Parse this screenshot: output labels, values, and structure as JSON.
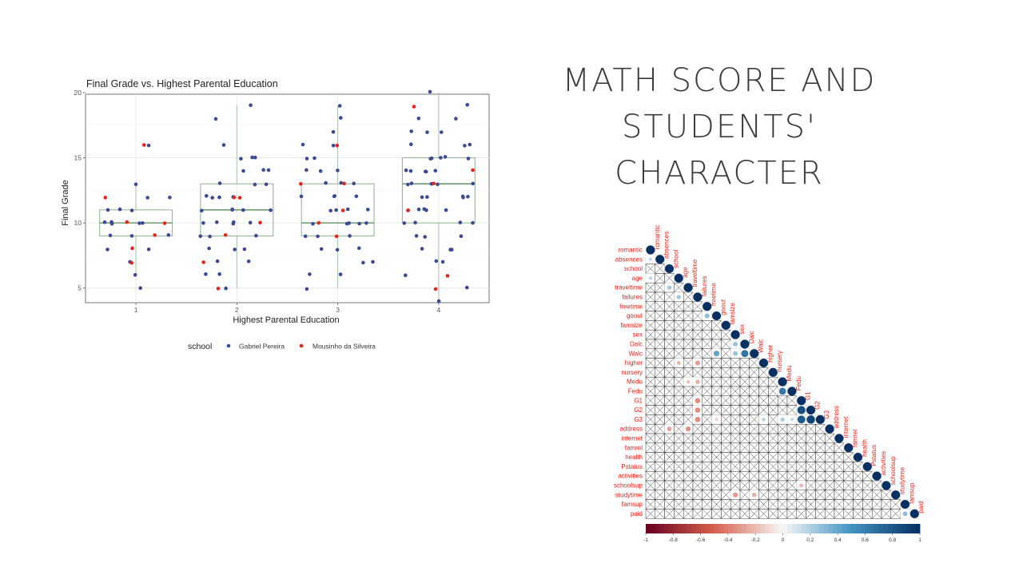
{
  "slide": {
    "title_lines": [
      "MATH SCORE AND",
      "STUDENTS'",
      "CHARACTER"
    ],
    "colors": {
      "title": "#3b3b3b"
    }
  },
  "chart_data": [
    {
      "type": "scatter",
      "subtype": "boxplot-with-jitter",
      "title": "Final Grade vs. Highest Parental Education",
      "xlabel": "Highest Parental Education",
      "ylabel": "Final Grade",
      "categories": [
        "1",
        "2",
        "3",
        "4"
      ],
      "yticks": [
        "5",
        "10",
        "15",
        "20"
      ],
      "ylim": [
        4,
        20
      ],
      "grid": true,
      "legend": {
        "title": "school",
        "position": "bottom",
        "entries": [
          {
            "label": "Gabriel Pereira",
            "color": "#3b4a94"
          },
          {
            "label": "Mousinho da Silveira",
            "color": "#e8231a"
          }
        ]
      },
      "boxes": [
        {
          "category": "1",
          "q1": 9,
          "median": 10,
          "q3": 11,
          "whisker_low": 6,
          "whisker_high": 13
        },
        {
          "category": "2",
          "q1": 9,
          "median": 11,
          "q3": 13,
          "whisker_low": 5,
          "whisker_high": 19
        },
        {
          "category": "3",
          "q1": 9,
          "median": 10,
          "q3": 13,
          "whisker_low": 5,
          "whisker_high": 19
        },
        {
          "category": "4",
          "q1": 10,
          "median": 13,
          "q3": 15,
          "whisker_low": 4,
          "whisker_high": 20
        }
      ],
      "series": [
        {
          "name": "Gabriel Pereira",
          "points": [
            [
              1,
              6
            ],
            [
              1,
              8
            ],
            [
              1,
              9
            ],
            [
              1,
              10
            ],
            [
              1,
              10
            ],
            [
              1,
              11
            ],
            [
              1,
              12
            ],
            [
              1,
              13
            ],
            [
              1,
              16
            ],
            [
              1,
              5
            ],
            [
              1,
              10
            ],
            [
              1,
              9
            ],
            [
              1,
              11
            ],
            [
              1,
              12
            ],
            [
              1,
              7
            ],
            [
              1,
              8
            ],
            [
              1,
              10
            ],
            [
              1,
              11
            ],
            [
              1,
              10
            ],
            [
              1,
              9
            ],
            [
              2,
              5
            ],
            [
              2,
              6
            ],
            [
              2,
              7
            ],
            [
              2,
              8
            ],
            [
              2,
              8
            ],
            [
              2,
              9
            ],
            [
              2,
              9
            ],
            [
              2,
              10
            ],
            [
              2,
              10
            ],
            [
              2,
              10
            ],
            [
              2,
              11
            ],
            [
              2,
              11
            ],
            [
              2,
              11
            ],
            [
              2,
              12
            ],
            [
              2,
              12
            ],
            [
              2,
              13
            ],
            [
              2,
              13
            ],
            [
              2,
              14
            ],
            [
              2,
              14
            ],
            [
              2,
              15
            ],
            [
              2,
              15
            ],
            [
              2,
              16
            ],
            [
              2,
              18
            ],
            [
              2,
              19
            ],
            [
              2,
              6
            ],
            [
              2,
              9
            ],
            [
              2,
              11
            ],
            [
              2,
              12
            ],
            [
              2,
              10
            ],
            [
              2,
              14
            ],
            [
              2,
              8
            ],
            [
              2,
              13
            ],
            [
              2,
              11
            ],
            [
              2,
              15
            ],
            [
              2,
              7
            ],
            [
              2,
              10
            ],
            [
              2,
              12
            ],
            [
              3,
              5
            ],
            [
              3,
              6
            ],
            [
              3,
              7
            ],
            [
              3,
              8
            ],
            [
              3,
              8
            ],
            [
              3,
              9
            ],
            [
              3,
              9
            ],
            [
              3,
              10
            ],
            [
              3,
              10
            ],
            [
              3,
              10
            ],
            [
              3,
              11
            ],
            [
              3,
              11
            ],
            [
              3,
              12
            ],
            [
              3,
              12
            ],
            [
              3,
              13
            ],
            [
              3,
              13
            ],
            [
              3,
              14
            ],
            [
              3,
              14
            ],
            [
              3,
              15
            ],
            [
              3,
              15
            ],
            [
              3,
              16
            ],
            [
              3,
              17
            ],
            [
              3,
              18
            ],
            [
              3,
              19
            ],
            [
              3,
              6
            ],
            [
              3,
              9
            ],
            [
              3,
              11
            ],
            [
              3,
              12
            ],
            [
              3,
              10
            ],
            [
              3,
              14
            ],
            [
              3,
              8
            ],
            [
              3,
              13
            ],
            [
              3,
              11
            ],
            [
              3,
              16
            ],
            [
              3,
              7
            ],
            [
              3,
              10
            ],
            [
              3,
              12
            ],
            [
              4,
              4
            ],
            [
              4,
              5
            ],
            [
              4,
              6
            ],
            [
              4,
              7
            ],
            [
              4,
              8
            ],
            [
              4,
              8
            ],
            [
              4,
              9
            ],
            [
              4,
              9
            ],
            [
              4,
              10
            ],
            [
              4,
              10
            ],
            [
              4,
              10
            ],
            [
              4,
              11
            ],
            [
              4,
              11
            ],
            [
              4,
              11
            ],
            [
              4,
              12
            ],
            [
              4,
              12
            ],
            [
              4,
              12
            ],
            [
              4,
              13
            ],
            [
              4,
              13
            ],
            [
              4,
              13
            ],
            [
              4,
              14
            ],
            [
              4,
              14
            ],
            [
              4,
              14
            ],
            [
              4,
              15
            ],
            [
              4,
              15
            ],
            [
              4,
              15
            ],
            [
              4,
              16
            ],
            [
              4,
              16
            ],
            [
              4,
              17
            ],
            [
              4,
              17
            ],
            [
              4,
              18
            ],
            [
              4,
              18
            ],
            [
              4,
              19
            ],
            [
              4,
              20
            ],
            [
              4,
              9
            ],
            [
              4,
              11
            ],
            [
              4,
              13
            ],
            [
              4,
              15
            ],
            [
              4,
              12
            ],
            [
              4,
              14
            ],
            [
              4,
              16
            ],
            [
              4,
              10
            ],
            [
              4,
              8
            ],
            [
              4,
              17
            ],
            [
              4,
              13
            ],
            [
              4,
              11
            ],
            [
              4,
              7
            ],
            [
              4,
              14
            ],
            [
              4,
              12
            ],
            [
              4,
              15
            ]
          ]
        },
        {
          "name": "Mousinho da Silveira",
          "points": [
            [
              1,
              16
            ],
            [
              1,
              12
            ],
            [
              1,
              10
            ],
            [
              1,
              9
            ],
            [
              1,
              8
            ],
            [
              1,
              7
            ],
            [
              1,
              10
            ],
            [
              2,
              5
            ],
            [
              2,
              7
            ],
            [
              2,
              9
            ],
            [
              2,
              10
            ],
            [
              2,
              12
            ],
            [
              2,
              12
            ],
            [
              3,
              9
            ],
            [
              3,
              10
            ],
            [
              3,
              11
            ],
            [
              3,
              13
            ],
            [
              3,
              16
            ],
            [
              3,
              13
            ],
            [
              4,
              5
            ],
            [
              4,
              6
            ],
            [
              4,
              11
            ],
            [
              4,
              13
            ],
            [
              4,
              14
            ],
            [
              4,
              19
            ]
          ]
        }
      ]
    },
    {
      "type": "heatmap",
      "subtype": "correlation-matrix-lower-triangle",
      "variables": [
        "romantic",
        "absences",
        "school",
        "age",
        "traveltime",
        "failures",
        "freetime",
        "goout",
        "famsize",
        "sex",
        "Dalc",
        "Walc",
        "higher",
        "nursery",
        "Medu",
        "Fedu",
        "G1",
        "G2",
        "G3",
        "address",
        "internet",
        "famrel",
        "health",
        "Pstatus",
        "activities",
        "schoolsup",
        "studytime",
        "famsup",
        "paid"
      ],
      "colorbar": {
        "ticks": [
          "-1",
          "-0.8",
          "-0.6",
          "-0.4",
          "-0.2",
          "0",
          "0.2",
          "0.4",
          "0.6",
          "0.8",
          "1"
        ],
        "range": [
          -1,
          1
        ],
        "colors": {
          "neg": "#67001f",
          "mid": "#f7f7f7",
          "pos": "#053061"
        }
      },
      "label_color": "#e8231a",
      "notable_correlations": [
        [
          "Medu",
          "Fedu",
          0.62
        ],
        [
          "G1",
          "G2",
          0.85
        ],
        [
          "G1",
          "G3",
          0.8
        ],
        [
          "G2",
          "G3",
          0.9
        ],
        [
          "Dalc",
          "Walc",
          0.65
        ],
        [
          "goout",
          "Walc",
          0.42
        ],
        [
          "freetime",
          "goout",
          0.29
        ],
        [
          "age",
          "failures",
          0.24
        ],
        [
          "school",
          "traveltime",
          0.24
        ],
        [
          "school",
          "address",
          -0.28
        ],
        [
          "failures",
          "G3",
          -0.36
        ],
        [
          "failures",
          "G1",
          -0.35
        ],
        [
          "failures",
          "G2",
          -0.35
        ],
        [
          "failures",
          "Medu",
          -0.24
        ],
        [
          "failures",
          "higher",
          -0.3
        ],
        [
          "higher",
          "G3",
          0.18
        ],
        [
          "Medu",
          "G3",
          0.22
        ],
        [
          "Fedu",
          "G3",
          0.15
        ],
        [
          "age",
          "higher",
          -0.21
        ],
        [
          "studytime",
          "Walc",
          -0.25
        ],
        [
          "sex",
          "Walc",
          0.27
        ],
        [
          "sex",
          "Dalc",
          0.27
        ],
        [
          "studytime",
          "sex",
          -0.31
        ],
        [
          "goout",
          "G3",
          -0.13
        ],
        [
          "absences",
          "romantic",
          0.15
        ],
        [
          "age",
          "romantic",
          0.16
        ],
        [
          "traveltime",
          "Medu",
          -0.17
        ],
        [
          "address",
          "traveltime",
          -0.33
        ],
        [
          "G1",
          "schoolsup",
          -0.21
        ],
        [
          "paid",
          "famsup",
          0.29
        ]
      ]
    }
  ]
}
